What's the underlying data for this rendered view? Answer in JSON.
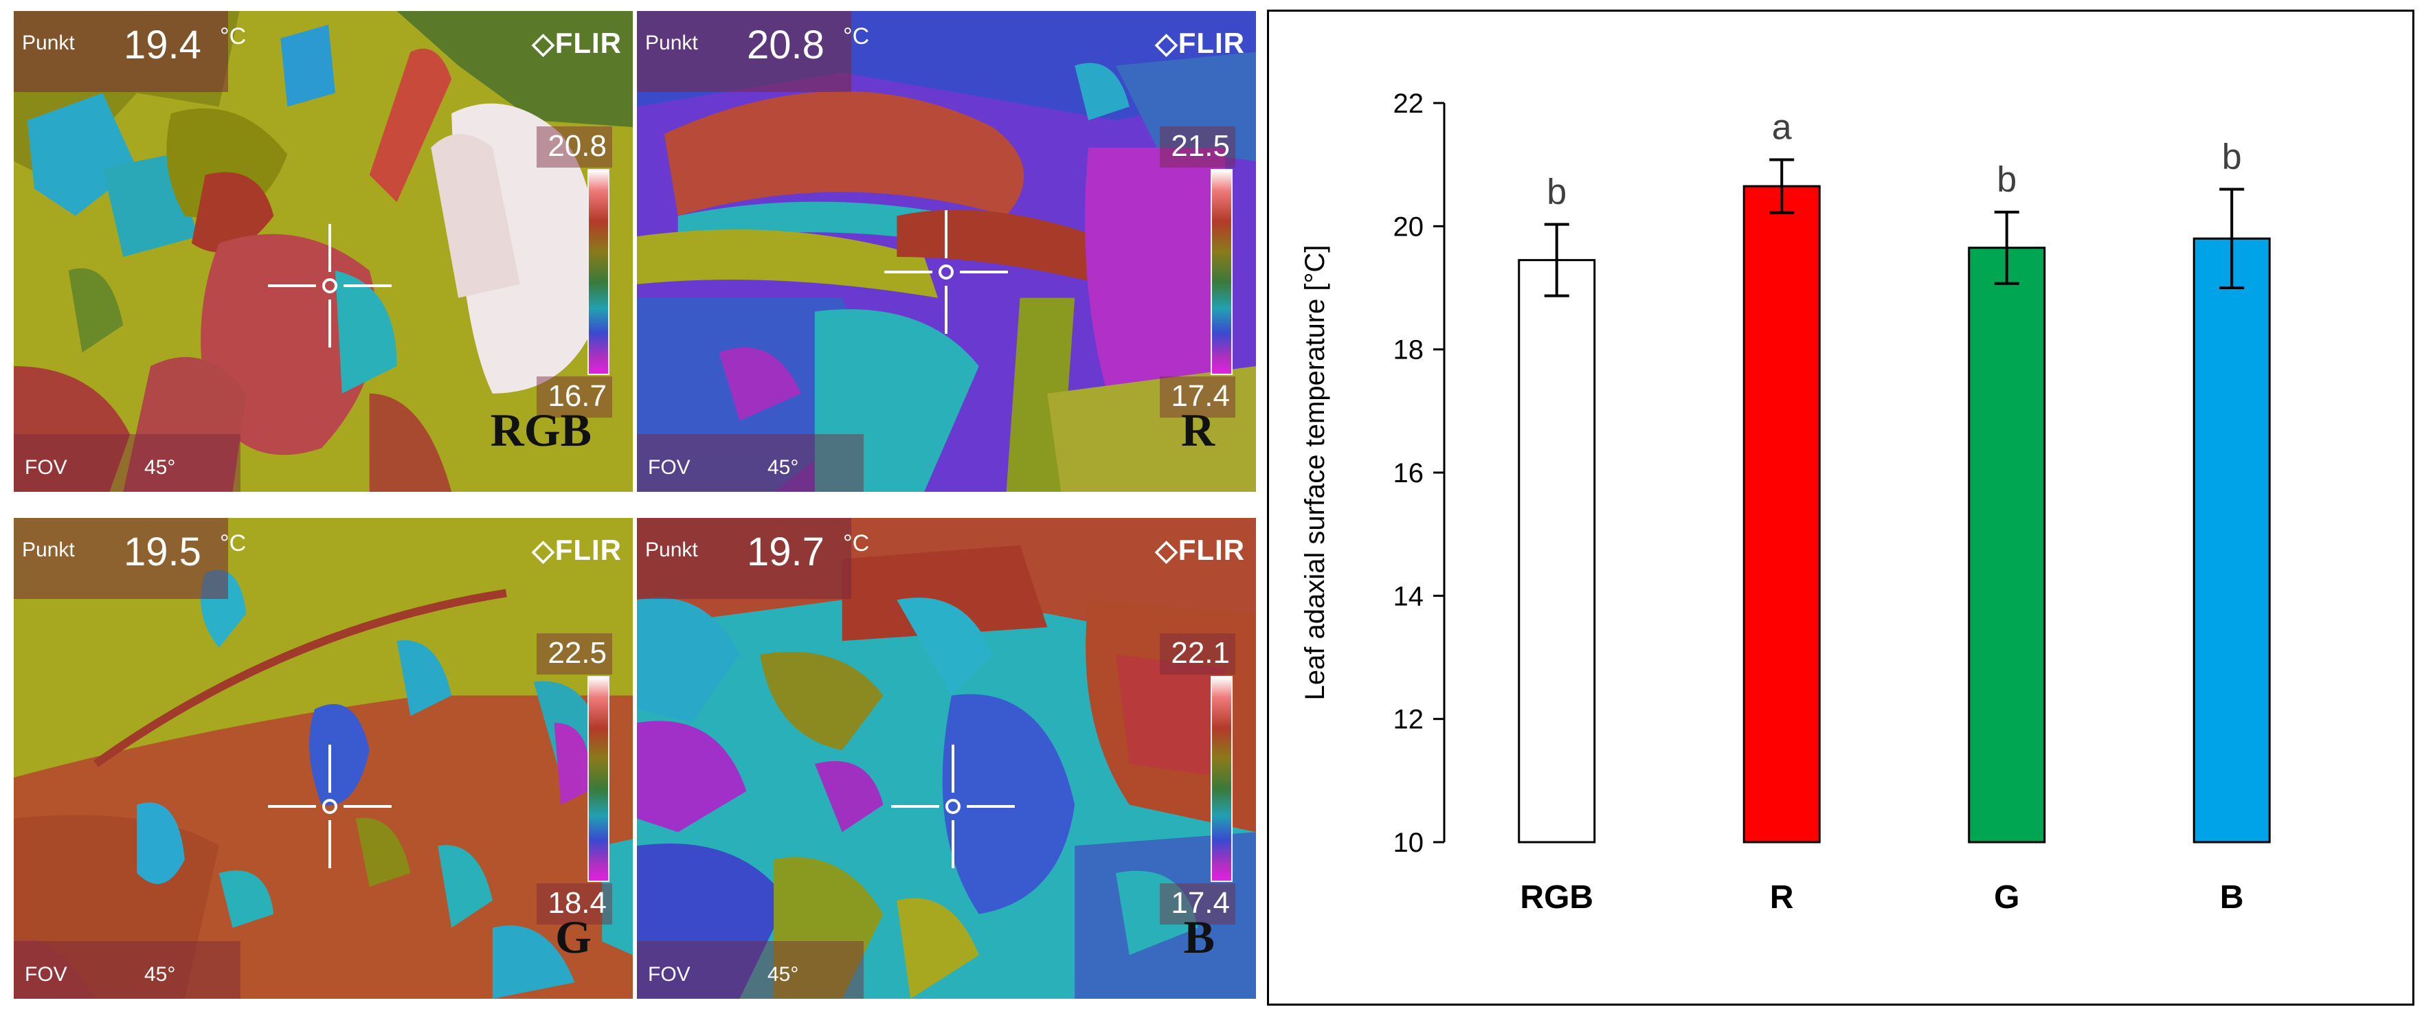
{
  "thermal_images": [
    {
      "id": "rgb",
      "punkt_label": "Punkt",
      "spot_value": "19.4",
      "unit": "°C",
      "brand": "FLIR",
      "scale_max": "20.8",
      "scale_min": "16.7",
      "fov_label": "FOV",
      "fov_value": "45°",
      "panel_label": "RGB"
    },
    {
      "id": "r",
      "punkt_label": "Punkt",
      "spot_value": "20.8",
      "unit": "°C",
      "brand": "FLIR",
      "scale_max": "21.5",
      "scale_min": "17.4",
      "fov_label": "FOV",
      "fov_value": "45°",
      "panel_label": "R"
    },
    {
      "id": "g",
      "punkt_label": "Punkt",
      "spot_value": "19.5",
      "unit": "°C",
      "brand": "FLIR",
      "scale_max": "22.5",
      "scale_min": "18.4",
      "fov_label": "FOV",
      "fov_value": "45°",
      "panel_label": "G"
    },
    {
      "id": "b",
      "punkt_label": "Punkt",
      "spot_value": "19.7",
      "unit": "°C",
      "brand": "FLIR",
      "scale_max": "22.1",
      "scale_min": "17.4",
      "fov_label": "FOV",
      "fov_value": "45°",
      "panel_label": "B"
    }
  ],
  "chart_data": {
    "type": "bar",
    "categories": [
      "RGB",
      "R",
      "G",
      "B"
    ],
    "values": [
      19.45,
      20.65,
      19.65,
      19.8
    ],
    "errors": [
      0.58,
      0.43,
      0.58,
      0.8
    ],
    "significance": [
      "b",
      "a",
      "b",
      "b"
    ],
    "colors": [
      "#ffffff",
      "#ff0000",
      "#00a651",
      "#00a2e8"
    ],
    "title": "",
    "xlabel": "",
    "ylabel": "Leaf adaxial surface temperature [°C]",
    "ylim": [
      10,
      22
    ],
    "yticks": [
      "10",
      "12",
      "14",
      "16",
      "18",
      "20",
      "22"
    ],
    "grid": false
  }
}
